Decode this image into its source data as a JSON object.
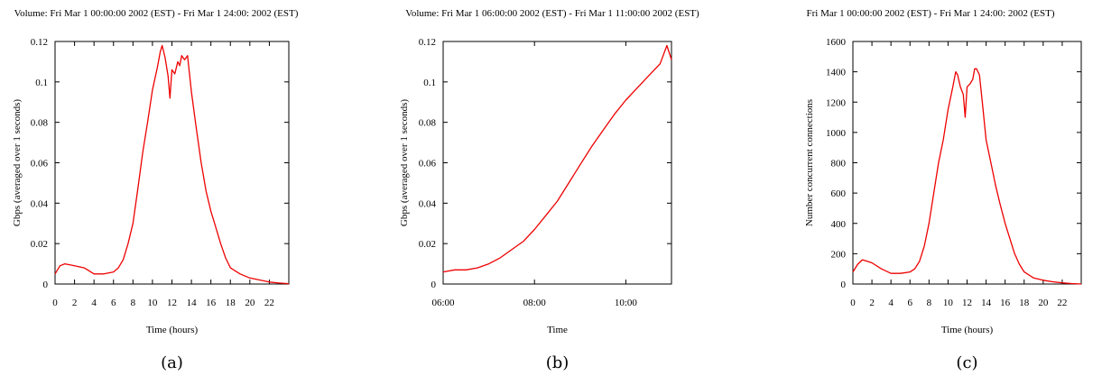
{
  "colors": {
    "series": "#ee0000",
    "axis": "#000000"
  },
  "chart_data": [
    {
      "type": "line",
      "caption": "(a)",
      "title": "Volume: Fri Mar  1 00:00:00 2002 (EST) - Fri Mar 1 24:00: 2002 (EST)",
      "xlabel": "Time (hours)",
      "ylabel": "Gbps (averaged over 1 seconds)",
      "xlim": [
        0,
        24
      ],
      "ylim": [
        0,
        0.12
      ],
      "xticks": [
        0,
        2,
        4,
        6,
        8,
        10,
        12,
        14,
        16,
        18,
        20,
        22
      ],
      "xtick_labels": [
        "0",
        "2",
        "4",
        "6",
        "8",
        "10",
        "12",
        "14",
        "16",
        "18",
        "20",
        "22"
      ],
      "yticks": [
        0,
        0.02,
        0.04,
        0.06,
        0.08,
        0.1,
        0.12
      ],
      "ytick_labels": [
        "0",
        "0.02",
        "0.04",
        "0.06",
        "0.08",
        "0.1",
        "0.12"
      ],
      "series": [
        {
          "x": [
            0,
            0.5,
            1,
            2,
            3,
            4,
            5,
            6,
            6.5,
            7,
            7.5,
            8,
            8.5,
            9,
            9.5,
            10,
            10.5,
            10.8,
            11,
            11.3,
            11.6,
            11.8,
            12,
            12.3,
            12.6,
            12.8,
            13,
            13.3,
            13.6,
            14,
            14.5,
            15,
            15.5,
            16,
            16.5,
            17,
            17.5,
            18,
            19,
            20,
            21,
            22,
            23,
            24
          ],
          "y": [
            0.005,
            0.009,
            0.01,
            0.009,
            0.008,
            0.005,
            0.005,
            0.006,
            0.008,
            0.012,
            0.02,
            0.03,
            0.047,
            0.065,
            0.08,
            0.096,
            0.107,
            0.115,
            0.118,
            0.112,
            0.103,
            0.092,
            0.106,
            0.104,
            0.11,
            0.108,
            0.113,
            0.111,
            0.113,
            0.095,
            0.077,
            0.06,
            0.046,
            0.036,
            0.028,
            0.02,
            0.013,
            0.008,
            0.005,
            0.003,
            0.002,
            0.001,
            0.0005,
            0.0002
          ]
        }
      ]
    },
    {
      "type": "line",
      "caption": "(b)",
      "title": "Volume: Fri Mar  1 06:00:00 2002 (EST) - Fri Mar  1 11:00:00 2002 (EST)",
      "xlabel": "Time",
      "ylabel": "Gbps (averaged over 1 seconds)",
      "xlim": [
        6,
        11
      ],
      "ylim": [
        0,
        0.12
      ],
      "xticks": [
        6,
        8,
        10
      ],
      "xtick_labels": [
        "06:00",
        "08:00",
        "10:00"
      ],
      "yticks": [
        0,
        0.02,
        0.04,
        0.06,
        0.08,
        0.1,
        0.12
      ],
      "ytick_labels": [
        "0",
        "0.02",
        "0.04",
        "0.06",
        "0.08",
        "0.1",
        "0.12"
      ],
      "series": [
        {
          "x": [
            6,
            6.25,
            6.5,
            6.75,
            7,
            7.25,
            7.5,
            7.75,
            8,
            8.25,
            8.5,
            8.75,
            9,
            9.25,
            9.5,
            9.75,
            10,
            10.25,
            10.5,
            10.75,
            10.9,
            11
          ],
          "y": [
            0.006,
            0.007,
            0.007,
            0.008,
            0.01,
            0.013,
            0.017,
            0.021,
            0.027,
            0.034,
            0.041,
            0.05,
            0.059,
            0.068,
            0.076,
            0.084,
            0.091,
            0.097,
            0.103,
            0.109,
            0.118,
            0.111
          ]
        }
      ]
    },
    {
      "type": "line",
      "caption": "(c)",
      "title": "Fri Mar  1 00:00:00 2002 (EST) - Fri Mar  1 24:00: 2002 (EST)",
      "xlabel": "Time (hours)",
      "ylabel": "Number concurrent connections",
      "xlim": [
        0,
        24
      ],
      "ylim": [
        0,
        1600
      ],
      "xticks": [
        0,
        2,
        4,
        6,
        8,
        10,
        12,
        14,
        16,
        18,
        20,
        22
      ],
      "xtick_labels": [
        "0",
        "2",
        "4",
        "6",
        "8",
        "10",
        "12",
        "14",
        "16",
        "18",
        "20",
        "22"
      ],
      "yticks": [
        0,
        200,
        400,
        600,
        800,
        1000,
        1200,
        1400,
        1600
      ],
      "ytick_labels": [
        "0",
        "200",
        "400",
        "600",
        "800",
        "1000",
        "1200",
        "1400",
        "1600"
      ],
      "series": [
        {
          "x": [
            0,
            0.5,
            1,
            1.5,
            2,
            3,
            4,
            5,
            6,
            6.5,
            7,
            7.5,
            8,
            8.5,
            9,
            9.5,
            10,
            10.5,
            10.8,
            11,
            11.3,
            11.6,
            11.8,
            12,
            12.3,
            12.6,
            12.8,
            13,
            13.3,
            13.6,
            14,
            14.5,
            15,
            15.5,
            16,
            16.5,
            17,
            17.5,
            18,
            19,
            20,
            21,
            22,
            23,
            24
          ],
          "y": [
            80,
            130,
            160,
            150,
            140,
            100,
            70,
            70,
            80,
            100,
            150,
            250,
            400,
            600,
            800,
            950,
            1150,
            1300,
            1400,
            1380,
            1300,
            1250,
            1100,
            1300,
            1320,
            1350,
            1420,
            1420,
            1380,
            1200,
            950,
            800,
            650,
            520,
            400,
            300,
            200,
            130,
            80,
            40,
            25,
            15,
            8,
            3,
            0
          ]
        }
      ]
    }
  ]
}
